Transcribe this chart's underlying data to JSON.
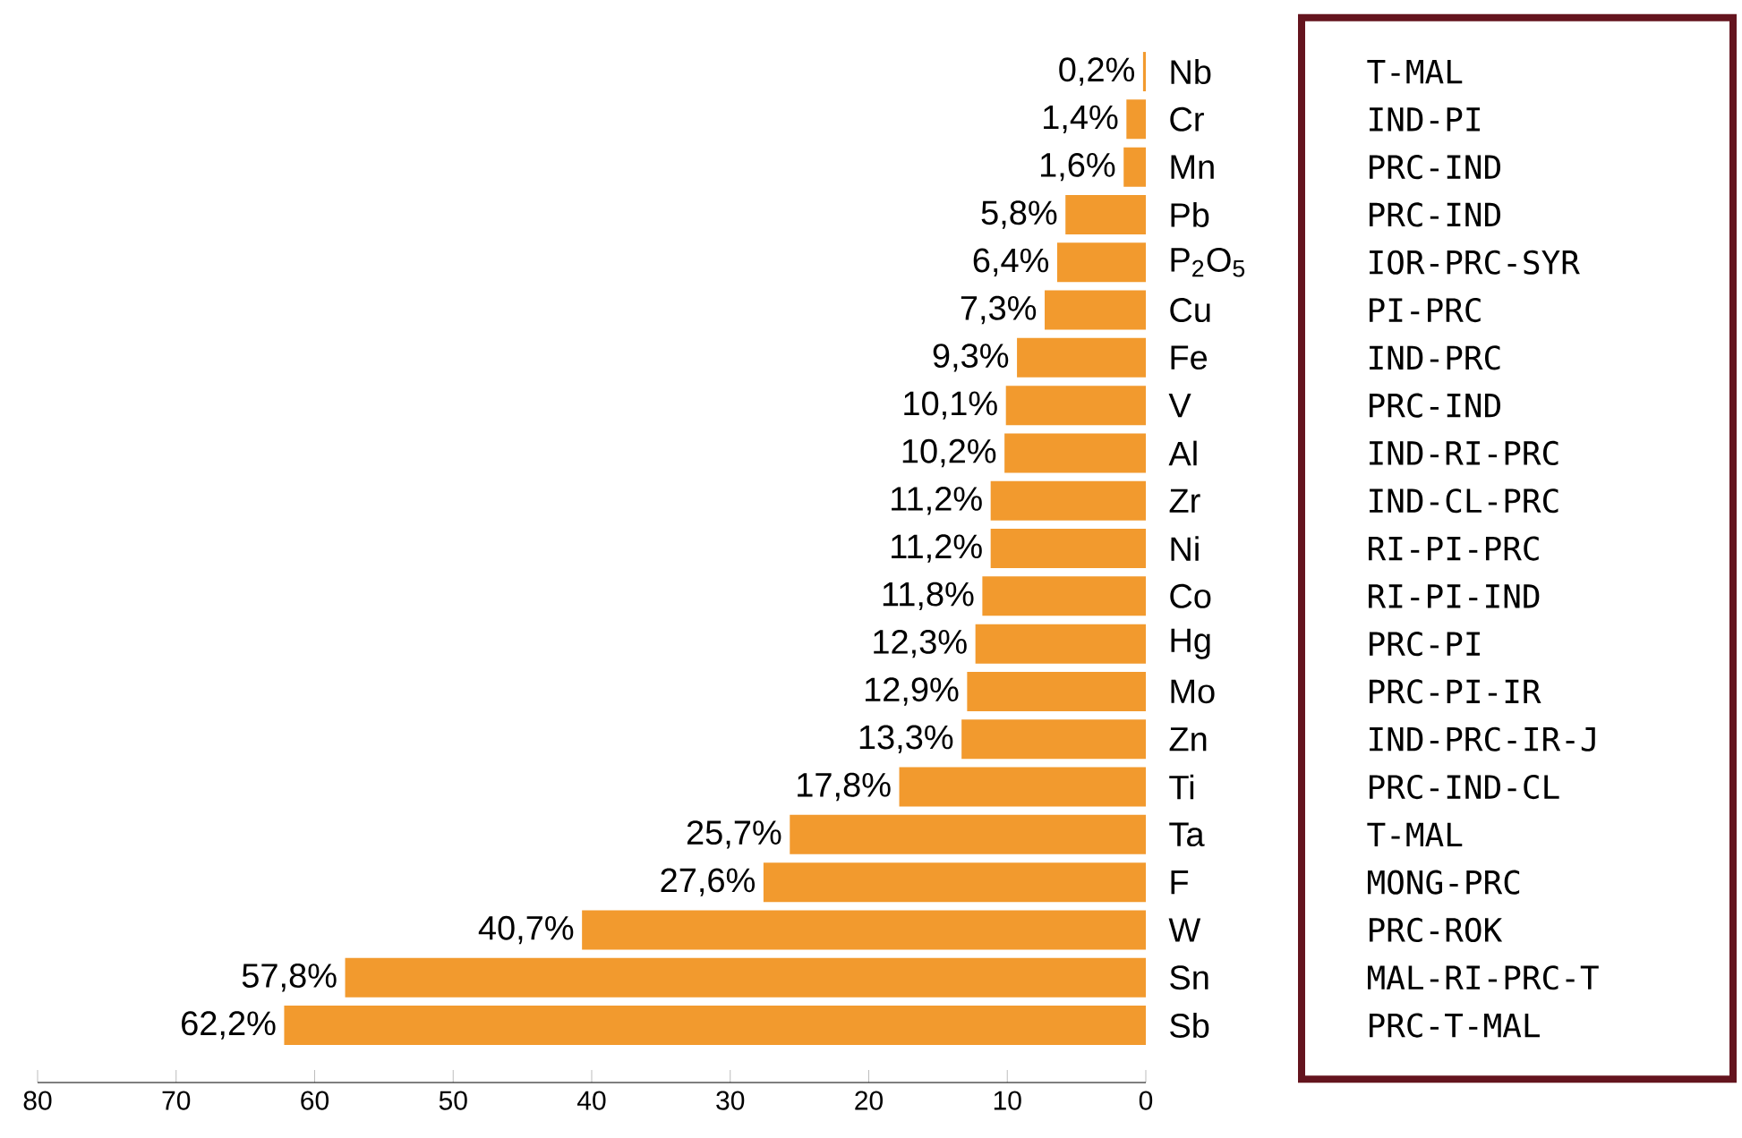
{
  "chart_data": {
    "type": "bar",
    "orientation": "horizontal",
    "categories": [
      "Nb",
      "Cr",
      "Mn",
      "Pb",
      "P$_{2}$O$_{5}$",
      "Cu",
      "Fe",
      "V",
      "Al",
      "Zr",
      "Ni",
      "Co",
      "Hg",
      "Mo",
      "Zn",
      "Ti",
      "Ta",
      "F",
      "W",
      "Sn",
      "Sb"
    ],
    "values": [
      0.2,
      1.4,
      1.6,
      5.8,
      6.4,
      7.3,
      9.3,
      10.1,
      10.2,
      11.2,
      11.2,
      11.8,
      12.3,
      12.9,
      13.3,
      17.8,
      25.7,
      27.6,
      40.7,
      57.8,
      62.2
    ],
    "value_labels": [
      "0,2%",
      "1,4%",
      "1,6%",
      "5,8%",
      "6,4%",
      "7,3%",
      "9,3%",
      "10,1%",
      "10,2%",
      "11,2%",
      "11,2%",
      "11,8%",
      "12,3%",
      "12,9%",
      "13,3%",
      "17,8%",
      "25,7%",
      "27,6%",
      "40,7%",
      "57,8%",
      "62,2%"
    ],
    "color": "#f29a2e",
    "xlim": [
      80,
      0
    ],
    "xticks": [
      80,
      70,
      60,
      50,
      40,
      30,
      20,
      10,
      0
    ],
    "annotations": [
      "T-MAL",
      "IND-PI",
      "PRC-IND",
      "PRC-IND",
      "IOR-PRC-SYR",
      "PI-PRC",
      "IND-PRC",
      "PRC-IND",
      "IND-RI-PRC",
      "IND-CL-PRC",
      "RI-PI-PRC",
      "RI-PI-IND",
      "PRC-PI",
      "PRC-PI-IR",
      "IND-PRC-IR-J",
      "PRC-IND-CL",
      "T-MAL",
      "MONG-PRC",
      "PRC-ROK",
      "MAL-RI-PRC-T",
      "PRC-T-MAL"
    ],
    "grid": false
  }
}
